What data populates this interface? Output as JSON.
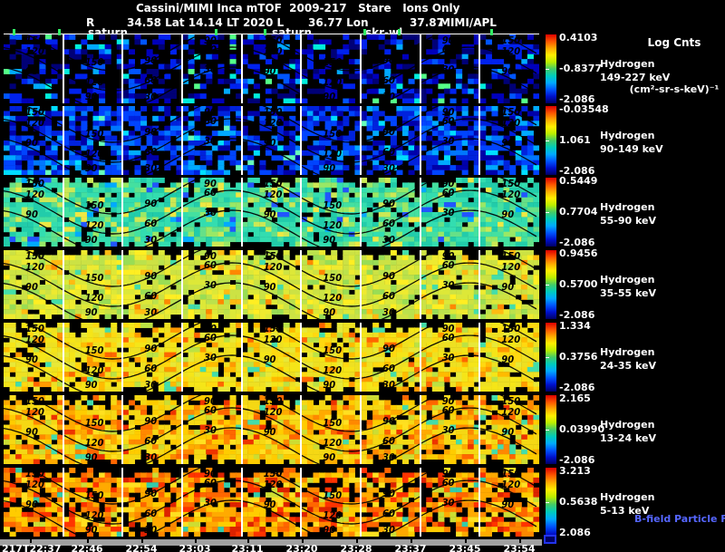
{
  "header": {
    "title": "Cassini/MIMI Inca mTOF  2009-217   Stare   Ions Only",
    "units_line1": "Log Cnts",
    "units_line2": "(cm²-sr-s-keV)⁻¹",
    "info_r": "R",
    "info_main": "34.58 Lat 14.14 LT 2020 L",
    "info_lon": "36.77 Lon",
    "info_lon_val": "37.87",
    "credit": "MIMI/APL"
  },
  "event_markers": {
    "m1": "saturn",
    "m2": "saturn",
    "m3": "skr-wl"
  },
  "bfield_label": "B-field Particle Flow",
  "time_axis": [
    "217T22:37",
    "22:46",
    "22:54",
    "23:03",
    "23:11",
    "23:20",
    "23:28",
    "23:37",
    "23:45",
    "23:54"
  ],
  "contours": {
    "labels_desc": [
      "150",
      "120",
      "90"
    ],
    "labels_asc": [
      "90",
      "60",
      "30"
    ],
    "amplitude": 24,
    "period": 262,
    "offsets": [
      16,
      38,
      60
    ]
  },
  "colorbar_gradient": [
    "#dd0000",
    "#ff5500",
    "#ffaa00",
    "#ffee00",
    "#bbee00",
    "#44cc66",
    "#00ccbb",
    "#00aaff",
    "#0055ff",
    "#0011cc",
    "#000066"
  ],
  "panels": [
    {
      "species": "Hydrogen",
      "energy": "149-227 keV",
      "cb_top": "0.4103",
      "cb_mid": "-0.8377",
      "cb_bot": "-2.086",
      "top_black": 0.15,
      "bot_black": 0.1,
      "palette": [
        [
          "#000000",
          0.62
        ],
        [
          "#000077",
          0.1
        ],
        [
          "#0000bb",
          0.1
        ],
        [
          "#0022ee",
          0.08
        ],
        [
          "#0055ff",
          0.05
        ],
        [
          "#00aaff",
          0.025
        ],
        [
          "#00eedd",
          0.015
        ],
        [
          "#55ff88",
          0.01
        ]
      ]
    },
    {
      "species": "Hydrogen",
      "energy": "90-149 keV",
      "cb_top": "-0.03548",
      "cb_mid": "1.061",
      "cb_bot": "-2.086",
      "top_black": 0.2,
      "bot_black": 0.1,
      "palette": [
        [
          "#000000",
          0.38
        ],
        [
          "#0000aa",
          0.14
        ],
        [
          "#0022dd",
          0.16
        ],
        [
          "#0044ff",
          0.14
        ],
        [
          "#0077ff",
          0.09
        ],
        [
          "#00aaff",
          0.05
        ],
        [
          "#00ddff",
          0.025
        ],
        [
          "#66ffbb",
          0.015
        ]
      ]
    },
    {
      "species": "Hydrogen",
      "energy": "55-90 keV",
      "cb_top": "0.5449",
      "cb_mid": "0.7704",
      "cb_bot": "-2.086",
      "top_black": 0.5,
      "bot_black": 0.3,
      "palette": [
        [
          "#000000",
          0.1
        ],
        [
          "#22ccaa",
          0.22
        ],
        [
          "#33ddb0",
          0.22
        ],
        [
          "#44e0a0",
          0.14
        ],
        [
          "#66e088",
          0.1
        ],
        [
          "#99e866",
          0.08
        ],
        [
          "#cce855",
          0.05
        ],
        [
          "#eee844",
          0.04
        ],
        [
          "#2255ff",
          0.03
        ],
        [
          "#00aaff",
          0.02
        ]
      ]
    },
    {
      "species": "Hydrogen",
      "energy": "35-55 keV",
      "cb_top": "0.9456",
      "cb_mid": "0.5700",
      "cb_bot": "-2.086",
      "top_black": 0.5,
      "bot_black": 0.3,
      "palette": [
        [
          "#000000",
          0.08
        ],
        [
          "#cce244",
          0.22
        ],
        [
          "#dde838",
          0.22
        ],
        [
          "#bbe24c",
          0.12
        ],
        [
          "#eeea30",
          0.12
        ],
        [
          "#99dd55",
          0.08
        ],
        [
          "#ffee22",
          0.08
        ],
        [
          "#ffbb11",
          0.04
        ],
        [
          "#44ddaa",
          0.02
        ],
        [
          "#ff8800",
          0.02
        ]
      ]
    },
    {
      "species": "Hydrogen",
      "energy": "24-35 keV",
      "cb_top": "1.334",
      "cb_mid": "0.3756",
      "cb_bot": "-2.086",
      "top_black": 0.5,
      "bot_black": 0.35,
      "palette": [
        [
          "#000000",
          0.1
        ],
        [
          "#eee022",
          0.25
        ],
        [
          "#f5e518",
          0.2
        ],
        [
          "#ffd810",
          0.12
        ],
        [
          "#e8e838",
          0.1
        ],
        [
          "#ffbb00",
          0.08
        ],
        [
          "#ff9900",
          0.05
        ],
        [
          "#bbe244",
          0.05
        ],
        [
          "#ff6600",
          0.03
        ],
        [
          "#44ddaa",
          0.02
        ]
      ]
    },
    {
      "species": "Hydrogen",
      "energy": "13-24 keV",
      "cb_top": "2.165",
      "cb_mid": "0.03990",
      "cb_bot": "-2.086",
      "top_black": 0.5,
      "bot_black": 0.35,
      "palette": [
        [
          "#000000",
          0.12
        ],
        [
          "#f5d814",
          0.22
        ],
        [
          "#ffcc00",
          0.16
        ],
        [
          "#ffaa00",
          0.12
        ],
        [
          "#ff8800",
          0.1
        ],
        [
          "#ffe020",
          0.1
        ],
        [
          "#ff6600",
          0.06
        ],
        [
          "#ee3300",
          0.04
        ],
        [
          "#ccdd33",
          0.05
        ],
        [
          "#44ddaa",
          0.03
        ]
      ]
    },
    {
      "species": "Hydrogen",
      "energy": "5-13 keV",
      "cb_top": "3.213",
      "cb_mid": "0.5638",
      "cb_bot": "2.086",
      "top_black": 0.55,
      "bot_black": 0.4,
      "palette": [
        [
          "#000000",
          0.22
        ],
        [
          "#ffcc00",
          0.14
        ],
        [
          "#ffaa00",
          0.14
        ],
        [
          "#ff8800",
          0.12
        ],
        [
          "#ff6600",
          0.1
        ],
        [
          "#ff3300",
          0.08
        ],
        [
          "#dd2200",
          0.06
        ],
        [
          "#ffe020",
          0.08
        ],
        [
          "#ccdd33",
          0.04
        ],
        [
          "#33ccaa",
          0.02
        ]
      ]
    }
  ],
  "chart_data": {
    "type": "heatmap",
    "title": "Cassini/MIMI Inca mTOF 2009-217 Stare Ions Only",
    "colorbar_units": "Log Cnts (cm²-sr-s-keV)⁻¹",
    "x_tick_labels": [
      "217T22:37",
      "22:46",
      "22:54",
      "23:03",
      "23:11",
      "23:20",
      "23:28",
      "23:37",
      "23:45",
      "23:54"
    ],
    "spacecraft_info": "R 34.58 Lat 14.14 LT 2020 L 36.77 Lon 37.87",
    "credit": "MIMI/APL",
    "event_markers": [
      "saturn",
      "saturn",
      "skr-wl"
    ],
    "pitch_angle_contour_labels": [
      150,
      120,
      90,
      60,
      30
    ],
    "panels": [
      {
        "label": "Hydrogen 149-227 keV",
        "scale_top": 0.4103,
        "scale_mid": -0.8377,
        "scale_bottom": -2.086
      },
      {
        "label": "Hydrogen 90-149 keV",
        "scale_top": -0.03548,
        "scale_mid": 1.061,
        "scale_bottom": -2.086
      },
      {
        "label": "Hydrogen 55-90 keV",
        "scale_top": 0.5449,
        "scale_mid": 0.7704,
        "scale_bottom": -2.086
      },
      {
        "label": "Hydrogen 35-55 keV",
        "scale_top": 0.9456,
        "scale_mid": 0.57,
        "scale_bottom": -2.086
      },
      {
        "label": "Hydrogen 24-35 keV",
        "scale_top": 1.334,
        "scale_mid": 0.3756,
        "scale_bottom": -2.086
      },
      {
        "label": "Hydrogen 13-24 keV",
        "scale_top": 2.165,
        "scale_mid": 0.0399,
        "scale_bottom": -2.086
      },
      {
        "label": "Hydrogen 5-13 keV",
        "scale_top": 3.213,
        "scale_mid": 0.5638,
        "scale_bottom": 2.086
      }
    ],
    "extra_label": "B-field Particle Flow"
  }
}
